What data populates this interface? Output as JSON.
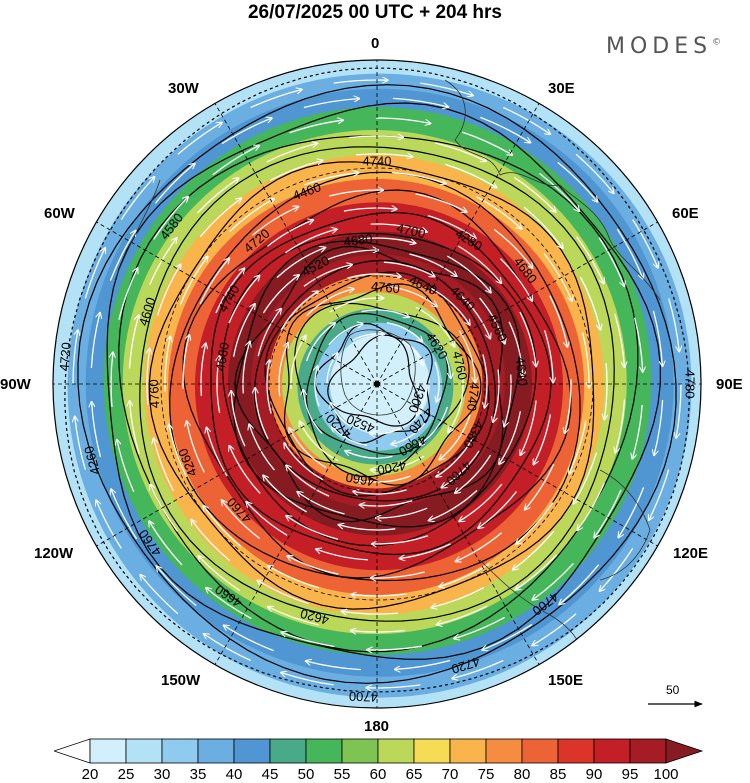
{
  "title": "26/07/2025  00 UTC  + 204 hrs",
  "brand": "MODES",
  "brand_mark": "©",
  "longitude_labels": {
    "n0": "0",
    "n30e": "30E",
    "n60e": "60E",
    "n90e": "90E",
    "n120e": "120E",
    "n150e": "150E",
    "n180": "180",
    "n150w": "150W",
    "n120w": "120W",
    "n90w": "90W",
    "n60w": "60W",
    "n30w": "30W"
  },
  "contour_labels": [
    "4780",
    "4760",
    "4760",
    "4700",
    "4680",
    "4620",
    "4620",
    "4520",
    "4300",
    "4260",
    "4640",
    "4720",
    "4740",
    "4760",
    "4660",
    "4680",
    "4740",
    "4760",
    "4640",
    "4700",
    "4720",
    "4740",
    "4760",
    "4700",
    "4660",
    "4600",
    "4560",
    "4520",
    "4460",
    "4380",
    "4260",
    "4280",
    "4200",
    "4580",
    "4640",
    "4720",
    "4740",
    "4760",
    "4720",
    "4680",
    "4660"
  ],
  "scale_vector_label": "50",
  "colorbar": {
    "labels": [
      "20",
      "25",
      "30",
      "35",
      "40",
      "45",
      "50",
      "55",
      "60",
      "65",
      "70",
      "75",
      "80",
      "85",
      "90",
      "95",
      "100"
    ],
    "colors": [
      "#ffffff",
      "#d2f0fb",
      "#b3e2f6",
      "#8ecbee",
      "#6aaee2",
      "#4f96d2",
      "#49aa8a",
      "#45b65a",
      "#7ec453",
      "#bcd85a",
      "#f6dc55",
      "#f9b44b",
      "#f58c3f",
      "#ee6335",
      "#dd342a",
      "#c41f26",
      "#a51c24",
      "#861b22"
    ]
  },
  "jet_rings": [
    {
      "r": 316,
      "speed": 28
    },
    {
      "r": 300,
      "speed": 35
    },
    {
      "r": 282,
      "speed": 42
    },
    {
      "r": 262,
      "speed": 52
    },
    {
      "r": 240,
      "speed": 62
    },
    {
      "r": 218,
      "speed": 72
    },
    {
      "r": 196,
      "speed": 82
    },
    {
      "r": 172,
      "speed": 92
    },
    {
      "r": 140,
      "speed": 104
    },
    {
      "r": 115,
      "speed": 96
    },
    {
      "r": 95,
      "speed": 78
    },
    {
      "r": 80,
      "speed": 60
    },
    {
      "r": 66,
      "speed": 45
    },
    {
      "r": 52,
      "speed": 32
    },
    {
      "r": 38,
      "speed": 24
    },
    {
      "r": 24,
      "speed": 20
    }
  ]
}
